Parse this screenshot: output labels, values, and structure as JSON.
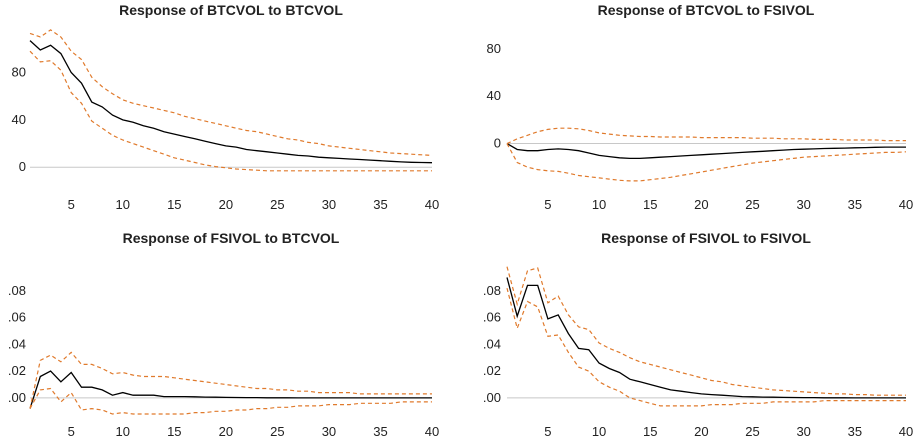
{
  "colors": {
    "response": "#000000",
    "band": "#e07a2c",
    "zero_line": "#c8c8c8"
  },
  "chart_data": [
    {
      "type": "line",
      "title": "Response of BTCVOL to BTCVOL",
      "xlim": [
        1,
        40
      ],
      "ylim": [
        -15,
        110
      ],
      "x_ticks": [
        5,
        10,
        15,
        20,
        25,
        30,
        35,
        40
      ],
      "x_tick_labels": [
        "5",
        "10",
        "15",
        "20",
        "25",
        "30",
        "35",
        "40"
      ],
      "y_ticks": [
        0,
        40,
        80
      ],
      "y_tick_labels": [
        "0",
        "40",
        "80"
      ],
      "grid": false,
      "x": [
        1,
        2,
        3,
        4,
        5,
        6,
        7,
        8,
        9,
        10,
        11,
        12,
        13,
        14,
        15,
        16,
        17,
        18,
        19,
        20,
        21,
        22,
        23,
        24,
        25,
        26,
        27,
        28,
        29,
        30,
        31,
        32,
        33,
        34,
        35,
        36,
        37,
        38,
        39,
        40
      ],
      "series": [
        {
          "role": "response",
          "values": [
            107,
            99,
            103,
            96,
            80,
            71,
            55,
            51,
            44,
            40,
            38,
            35,
            33,
            30,
            28,
            26,
            24,
            22,
            20,
            18,
            17,
            15,
            14,
            13,
            12,
            11,
            10,
            9.5,
            8.5,
            8,
            7.5,
            7,
            6.5,
            6,
            5.5,
            5,
            4.5,
            4.2,
            4,
            3.8
          ]
        },
        {
          "role": "upper",
          "values": [
            113,
            110,
            116,
            110,
            98,
            91,
            76,
            68,
            62,
            57,
            54,
            52,
            50,
            48,
            46,
            43,
            41,
            39,
            37,
            35,
            33,
            31,
            30,
            28,
            26,
            24,
            23,
            21,
            20,
            18,
            17,
            16,
            15,
            14,
            13,
            12,
            11.5,
            11,
            10.5,
            10
          ]
        },
        {
          "role": "lower",
          "values": [
            98,
            89,
            90,
            82,
            63,
            54,
            39,
            33,
            27,
            23,
            20,
            17,
            14,
            11,
            8,
            6,
            4,
            2,
            0.5,
            -0.5,
            -1.5,
            -2,
            -2.5,
            -3,
            -3,
            -3,
            -3,
            -3,
            -3,
            -3,
            -3,
            -3,
            -3,
            -3,
            -3,
            -3,
            -3,
            -3,
            -3,
            -3
          ]
        }
      ]
    },
    {
      "type": "line",
      "title": "Response of BTCVOL to FSIVOL",
      "xlim": [
        1,
        40
      ],
      "ylim": [
        -35,
        90
      ],
      "x_ticks": [
        5,
        10,
        15,
        20,
        25,
        30,
        35,
        40
      ],
      "x_tick_labels": [
        "5",
        "10",
        "15",
        "20",
        "25",
        "30",
        "35",
        "40"
      ],
      "y_ticks": [
        0,
        40,
        80
      ],
      "y_tick_labels": [
        "0",
        "40",
        "80"
      ],
      "grid": false,
      "x": [
        1,
        2,
        3,
        4,
        5,
        6,
        7,
        8,
        9,
        10,
        11,
        12,
        13,
        14,
        15,
        16,
        17,
        18,
        19,
        20,
        21,
        22,
        23,
        24,
        25,
        26,
        27,
        28,
        29,
        30,
        31,
        32,
        33,
        34,
        35,
        36,
        37,
        38,
        39,
        40
      ],
      "series": [
        {
          "role": "response",
          "values": [
            0,
            -5,
            -6,
            -6,
            -5,
            -4.5,
            -5,
            -6,
            -8,
            -10,
            -11,
            -12,
            -12.5,
            -12.5,
            -12,
            -11.5,
            -11,
            -10.5,
            -10,
            -9.5,
            -9,
            -8.5,
            -8,
            -7.5,
            -7,
            -6.5,
            -6,
            -5.5,
            -5,
            -4.8,
            -4.5,
            -4.2,
            -4,
            -3.8,
            -3.6,
            -3.4,
            -3.2,
            -3,
            -3,
            -3
          ]
        },
        {
          "role": "upper",
          "values": [
            0,
            4,
            7,
            10,
            12,
            13,
            13,
            12.5,
            11,
            9,
            8,
            7,
            6.5,
            6,
            6,
            5.5,
            5.5,
            5.5,
            5.5,
            5,
            5,
            5,
            5,
            5,
            4.5,
            4.5,
            4.5,
            4,
            4,
            4,
            3.5,
            3.5,
            3.5,
            3,
            3,
            3,
            3,
            2.5,
            2.5,
            2.5
          ]
        },
        {
          "role": "lower",
          "values": [
            0,
            -16,
            -20,
            -22,
            -23,
            -23.5,
            -25,
            -27,
            -28,
            -29,
            -30,
            -31,
            -31.5,
            -31.5,
            -30.5,
            -29.5,
            -28.5,
            -27,
            -25.5,
            -24,
            -22.5,
            -21,
            -19.5,
            -18,
            -16.5,
            -15.5,
            -14.5,
            -13.5,
            -12.5,
            -11.5,
            -11,
            -10.5,
            -10,
            -9.5,
            -9,
            -8.5,
            -8,
            -7.5,
            -7.5,
            -7
          ]
        }
      ]
    },
    {
      "type": "line",
      "title": "Response of FSIVOL to BTCVOL",
      "xlim": [
        1,
        40
      ],
      "ylim": [
        -0.015,
        0.1
      ],
      "x_ticks": [
        5,
        10,
        15,
        20,
        25,
        30,
        35,
        40
      ],
      "x_tick_labels": [
        "5",
        "10",
        "15",
        "20",
        "25",
        "30",
        "35",
        "40"
      ],
      "y_ticks": [
        0,
        0.02,
        0.04,
        0.06,
        0.08
      ],
      "y_tick_labels": [
        ".00",
        ".02",
        ".04",
        ".06",
        ".08"
      ],
      "grid": false,
      "x": [
        1,
        2,
        3,
        4,
        5,
        6,
        7,
        8,
        9,
        10,
        11,
        12,
        13,
        14,
        15,
        16,
        17,
        18,
        19,
        20,
        21,
        22,
        23,
        24,
        25,
        26,
        27,
        28,
        29,
        30,
        31,
        32,
        33,
        34,
        35,
        36,
        37,
        38,
        39,
        40
      ],
      "series": [
        {
          "role": "response",
          "values": [
            -0.008,
            0.016,
            0.02,
            0.012,
            0.019,
            0.008,
            0.008,
            0.006,
            0.002,
            0.004,
            0.002,
            0.002,
            0.002,
            0.001,
            0.001,
            0.001,
            0.0008,
            0.0006,
            0.0005,
            0.0004,
            0.0003,
            0.0002,
            0.0002,
            0.0001,
            0.0001,
            0.0001,
            0,
            0,
            0,
            0,
            0,
            0,
            0,
            0,
            0,
            0,
            0,
            0,
            0,
            0
          ]
        },
        {
          "role": "upper",
          "values": [
            -0.008,
            0.028,
            0.032,
            0.027,
            0.034,
            0.025,
            0.025,
            0.022,
            0.018,
            0.019,
            0.017,
            0.016,
            0.016,
            0.016,
            0.015,
            0.014,
            0.013,
            0.012,
            0.011,
            0.01,
            0.009,
            0.008,
            0.007,
            0.007,
            0.006,
            0.006,
            0.005,
            0.005,
            0.004,
            0.004,
            0.004,
            0.004,
            0.003,
            0.003,
            0.003,
            0.003,
            0.003,
            0.003,
            0.003,
            0.003
          ]
        },
        {
          "role": "lower",
          "values": [
            -0.008,
            0.006,
            0.007,
            -0.003,
            0.004,
            -0.009,
            -0.008,
            -0.009,
            -0.012,
            -0.011,
            -0.012,
            -0.012,
            -0.012,
            -0.012,
            -0.012,
            -0.012,
            -0.011,
            -0.011,
            -0.01,
            -0.01,
            -0.009,
            -0.009,
            -0.008,
            -0.008,
            -0.007,
            -0.007,
            -0.006,
            -0.006,
            -0.006,
            -0.005,
            -0.005,
            -0.005,
            -0.004,
            -0.004,
            -0.004,
            -0.004,
            -0.003,
            -0.003,
            -0.003,
            -0.003
          ]
        }
      ]
    },
    {
      "type": "line",
      "title": "Response of FSIVOL to FSIVOL",
      "xlim": [
        1,
        40
      ],
      "ylim": [
        -0.015,
        0.1
      ],
      "x_ticks": [
        5,
        10,
        15,
        20,
        25,
        30,
        35,
        40
      ],
      "x_tick_labels": [
        "5",
        "10",
        "15",
        "20",
        "25",
        "30",
        "35",
        "40"
      ],
      "y_ticks": [
        0,
        0.02,
        0.04,
        0.06,
        0.08
      ],
      "y_tick_labels": [
        ".00",
        ".02",
        ".04",
        ".06",
        ".08"
      ],
      "grid": false,
      "x": [
        1,
        2,
        3,
        4,
        5,
        6,
        7,
        8,
        9,
        10,
        11,
        12,
        13,
        14,
        15,
        16,
        17,
        18,
        19,
        20,
        21,
        22,
        23,
        24,
        25,
        26,
        27,
        28,
        29,
        30,
        31,
        32,
        33,
        34,
        35,
        36,
        37,
        38,
        39,
        40
      ],
      "series": [
        {
          "role": "response",
          "values": [
            0.09,
            0.061,
            0.084,
            0.084,
            0.059,
            0.062,
            0.048,
            0.037,
            0.036,
            0.026,
            0.022,
            0.019,
            0.014,
            0.012,
            0.01,
            0.008,
            0.006,
            0.005,
            0.004,
            0.003,
            0.0025,
            0.002,
            0.0015,
            0.001,
            0.0008,
            0.0006,
            0.0005,
            0.0004,
            0.0003,
            0.0002,
            0.0002,
            0.0001,
            0.0001,
            0.0001,
            0,
            0,
            0,
            0,
            0,
            0
          ]
        },
        {
          "role": "upper",
          "values": [
            0.098,
            0.07,
            0.095,
            0.097,
            0.071,
            0.076,
            0.062,
            0.053,
            0.051,
            0.041,
            0.037,
            0.034,
            0.03,
            0.027,
            0.025,
            0.023,
            0.021,
            0.019,
            0.017,
            0.015,
            0.013,
            0.012,
            0.01,
            0.009,
            0.008,
            0.007,
            0.006,
            0.0055,
            0.005,
            0.0045,
            0.004,
            0.0035,
            0.003,
            0.003,
            0.0025,
            0.0025,
            0.002,
            0.002,
            0.002,
            0.002
          ]
        },
        {
          "role": "lower",
          "values": [
            0.082,
            0.052,
            0.072,
            0.068,
            0.046,
            0.047,
            0.034,
            0.023,
            0.02,
            0.012,
            0.008,
            0.005,
            0.0,
            -0.002,
            -0.004,
            -0.006,
            -0.006,
            -0.006,
            -0.006,
            -0.006,
            -0.005,
            -0.005,
            -0.005,
            -0.004,
            -0.004,
            -0.004,
            -0.003,
            -0.003,
            -0.003,
            -0.003,
            -0.003,
            -0.002,
            -0.002,
            -0.002,
            -0.002,
            -0.002,
            -0.002,
            -0.002,
            -0.002,
            -0.002
          ]
        }
      ]
    }
  ]
}
